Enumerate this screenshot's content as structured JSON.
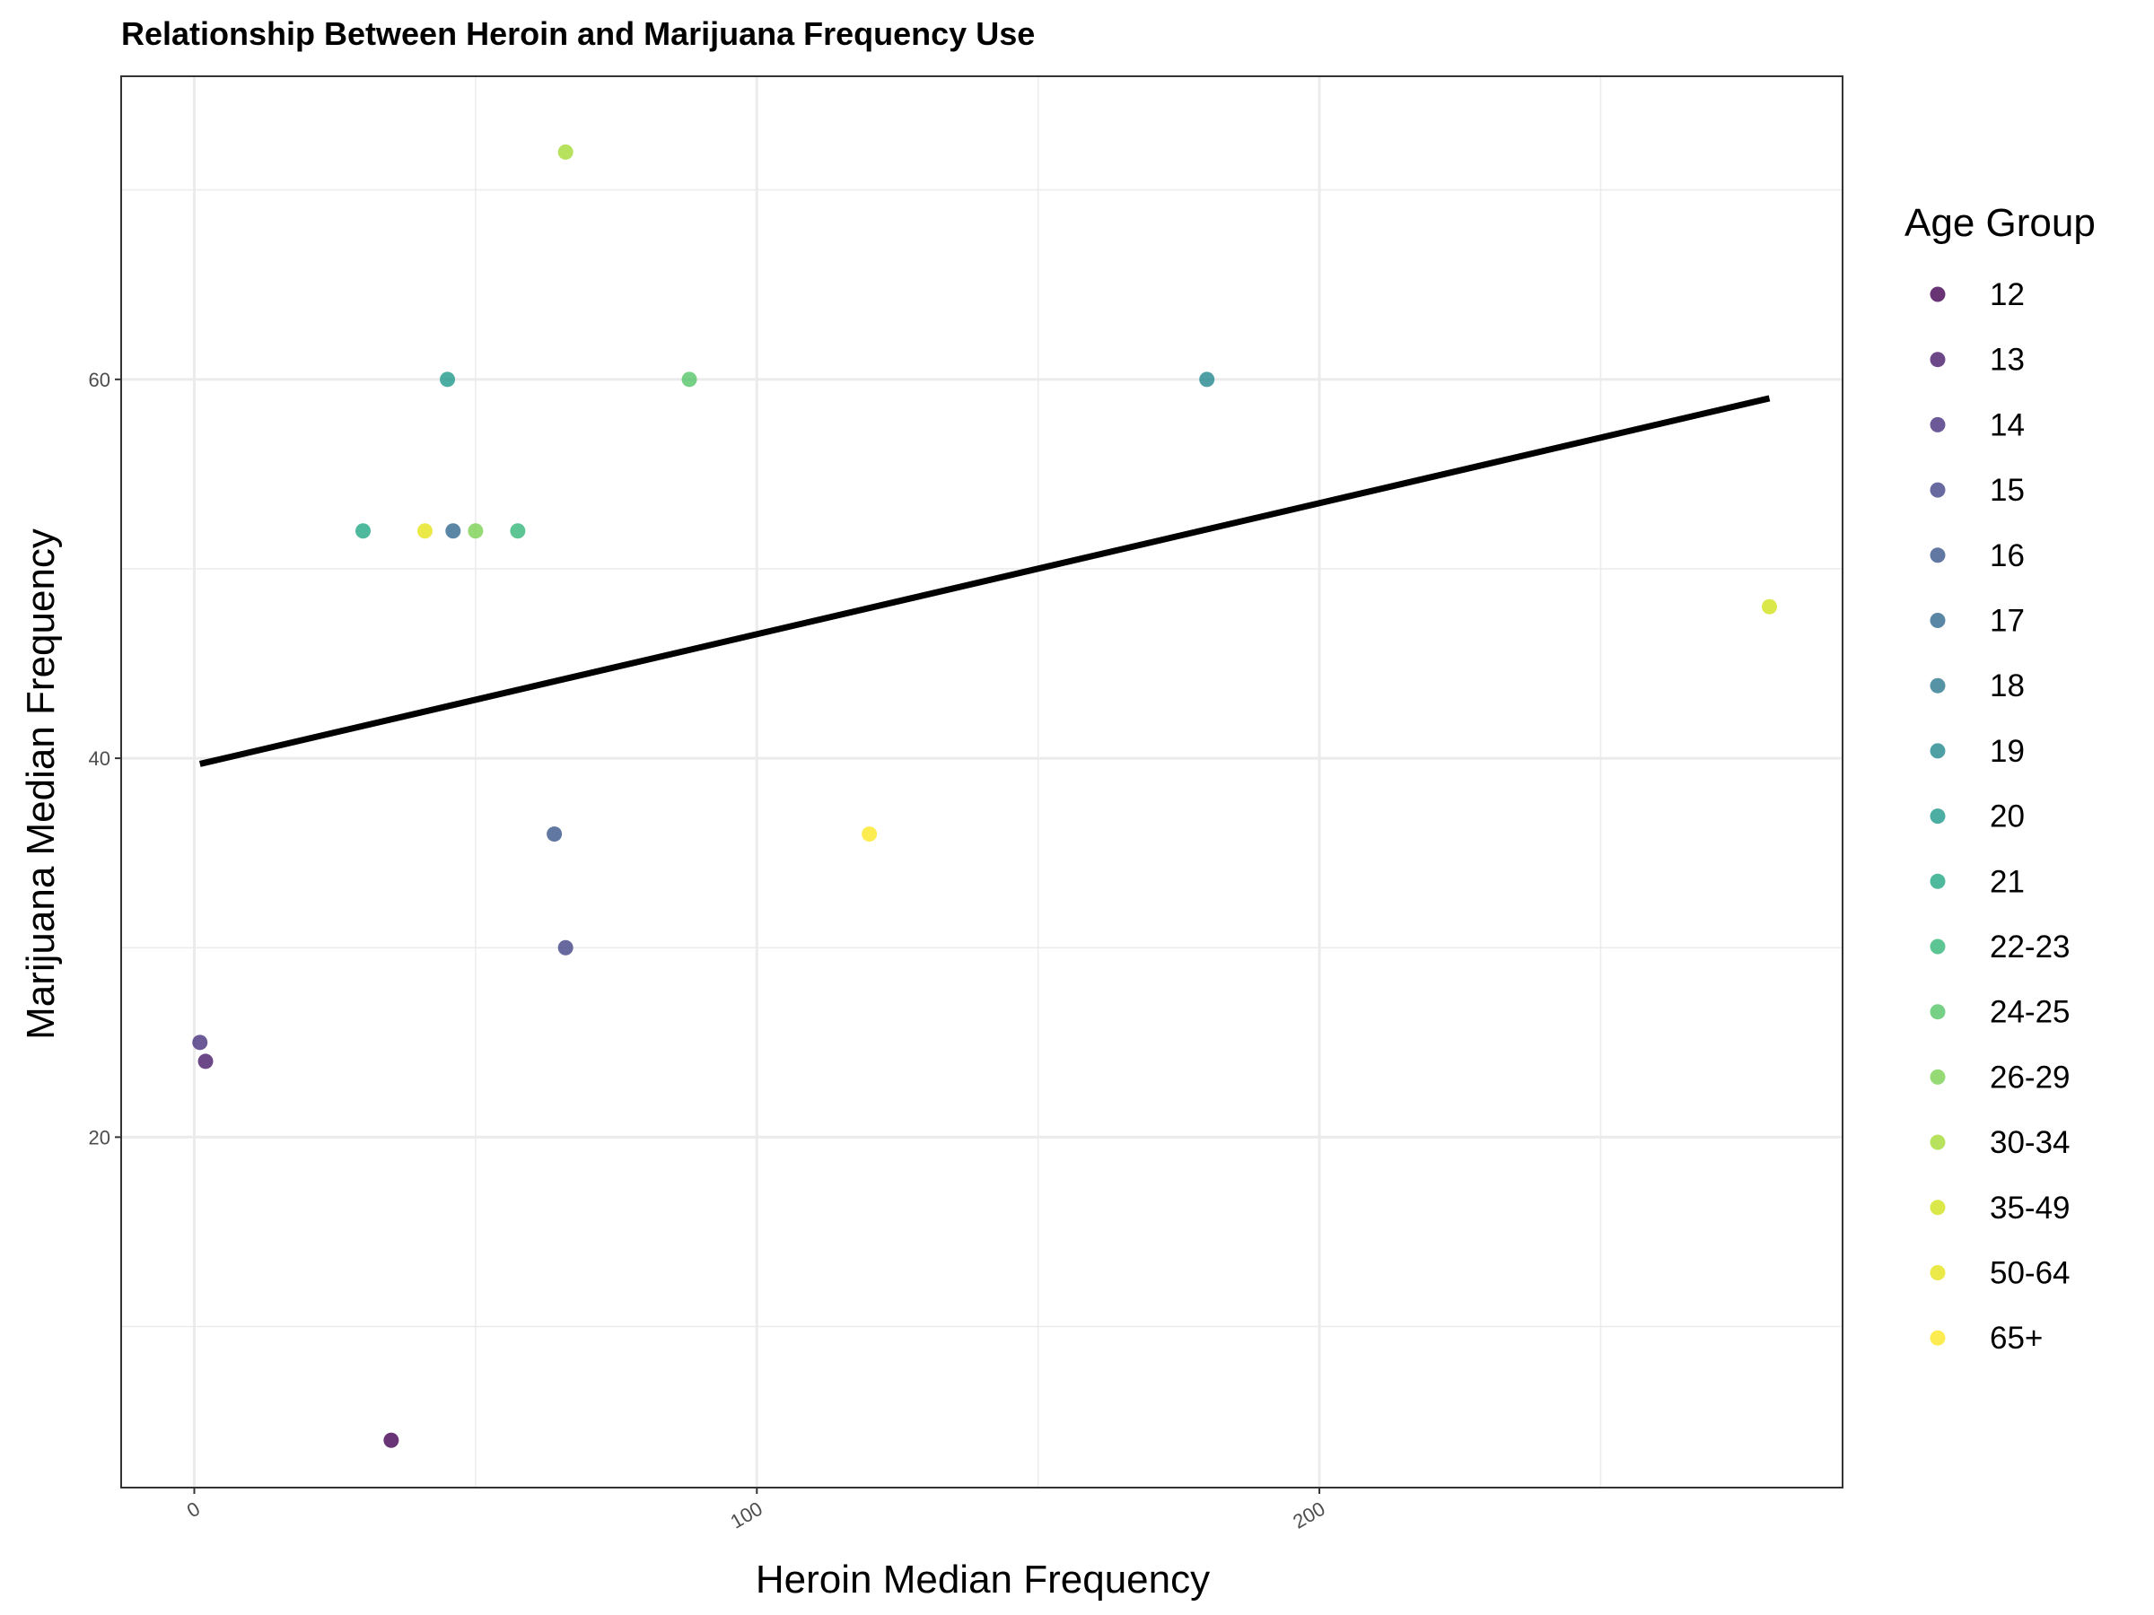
{
  "chart_data": {
    "type": "scatter",
    "title": "Relationship Between Heroin and Marijuana Frequency Use",
    "xlabel": "Heroin Median Frequency",
    "ylabel": "Marijuana Median Frequency",
    "xlim": [
      -13,
      293
    ],
    "ylim": [
      1.5,
      76
    ],
    "x_ticks": [
      {
        "value": 0,
        "label": "0"
      },
      {
        "value": 100,
        "label": "100"
      },
      {
        "value": 200,
        "label": "200"
      }
    ],
    "y_ticks": [
      {
        "value": 20,
        "label": "20"
      },
      {
        "value": 40,
        "label": "40"
      },
      {
        "value": 60,
        "label": "60"
      }
    ],
    "grid": true,
    "legend": {
      "title": "Age Group",
      "placement": "right"
    },
    "series": [
      {
        "name": "12",
        "color": "#440154",
        "points": [
          {
            "x": 35,
            "y": 4
          }
        ]
      },
      {
        "name": "13",
        "color": "#481A6C",
        "points": [
          {
            "x": 2,
            "y": 24
          }
        ]
      },
      {
        "name": "14",
        "color": "#472F7D",
        "points": [
          {
            "x": 1,
            "y": 25
          }
        ]
      },
      {
        "name": "15",
        "color": "#414487",
        "points": [
          {
            "x": 66,
            "y": 30
          }
        ]
      },
      {
        "name": "16",
        "color": "#39568C",
        "points": [
          {
            "x": 64,
            "y": 36
          }
        ]
      },
      {
        "name": "17",
        "color": "#31688E",
        "points": [
          {
            "x": 46,
            "y": 52
          }
        ]
      },
      {
        "name": "18",
        "color": "#2A788E",
        "points": []
      },
      {
        "name": "19",
        "color": "#23888E",
        "points": [
          {
            "x": 180,
            "y": 60
          }
        ]
      },
      {
        "name": "20",
        "color": "#1F988B",
        "points": [
          {
            "x": 45,
            "y": 60
          }
        ]
      },
      {
        "name": "21",
        "color": "#22A884",
        "points": [
          {
            "x": 30,
            "y": 52
          }
        ]
      },
      {
        "name": "22-23",
        "color": "#35B779",
        "points": [
          {
            "x": 57.5,
            "y": 52
          }
        ]
      },
      {
        "name": "24-25",
        "color": "#54C568",
        "points": [
          {
            "x": 88,
            "y": 60
          }
        ]
      },
      {
        "name": "26-29",
        "color": "#7AD151",
        "points": [
          {
            "x": 50,
            "y": 52
          }
        ]
      },
      {
        "name": "30-34",
        "color": "#A5DB36",
        "points": [
          {
            "x": 66,
            "y": 72
          }
        ]
      },
      {
        "name": "35-49",
        "color": "#D2E21B",
        "points": [
          {
            "x": 280,
            "y": 48
          }
        ]
      },
      {
        "name": "50-64",
        "color": "#E6E419",
        "points": [
          {
            "x": 41,
            "y": 52
          }
        ]
      },
      {
        "name": "65+",
        "color": "#FDE725",
        "points": [
          {
            "x": 120,
            "y": 36
          }
        ]
      }
    ],
    "trend_line": {
      "x": [
        1,
        280
      ],
      "y": [
        39.7,
        59.0
      ],
      "color": "#000000"
    }
  }
}
